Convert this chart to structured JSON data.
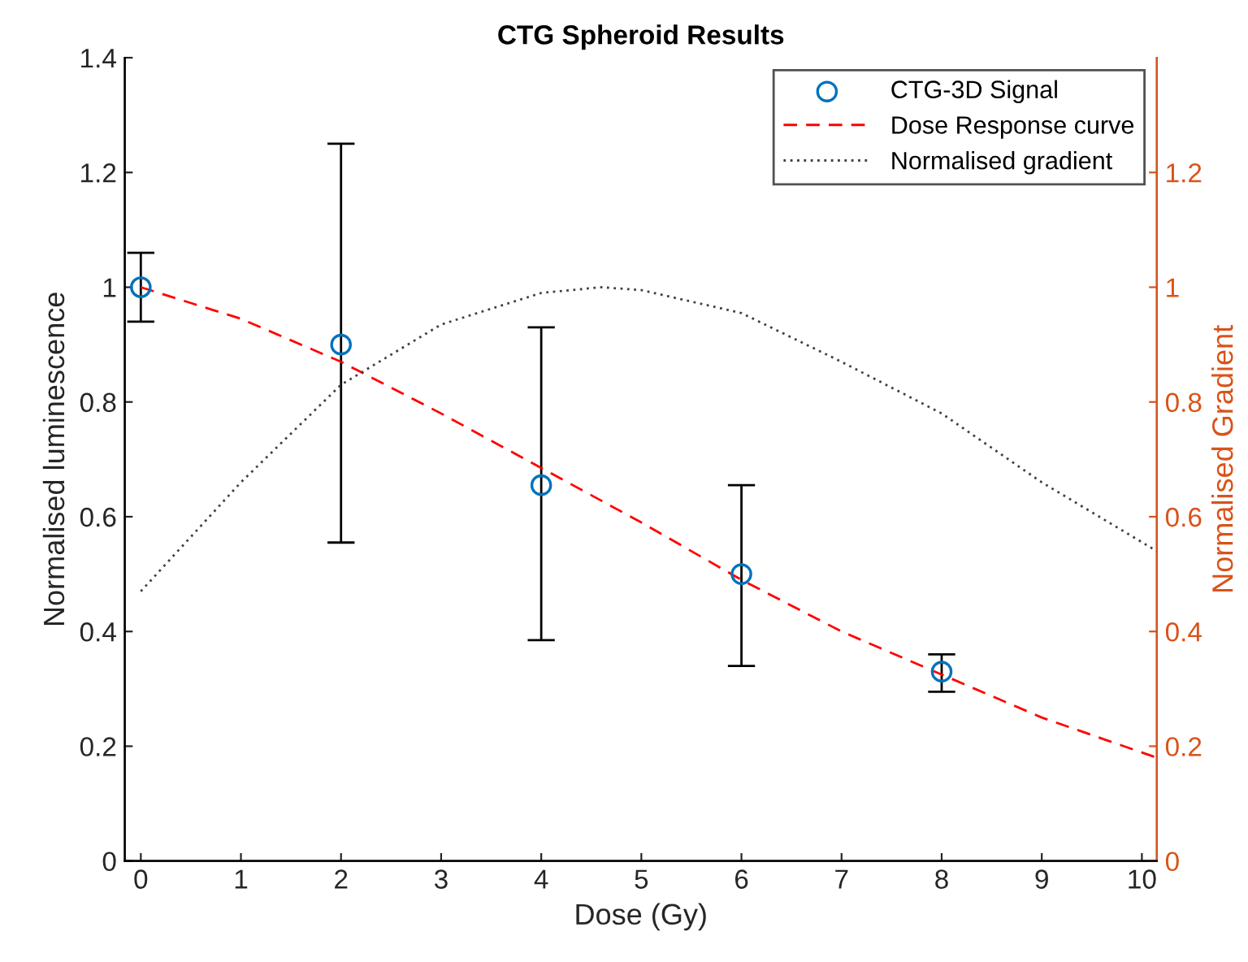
{
  "chart_data": {
    "type": "scatter",
    "title": "CTG Spheroid Results",
    "xlabel": "Dose (Gy)",
    "ylabel": "Normalised luminescence",
    "y2label": "Normalised Gradient",
    "xlim": [
      -0.16,
      10.15
    ],
    "xticks": [
      0,
      1,
      2,
      3,
      4,
      5,
      6,
      7,
      8,
      9,
      10
    ],
    "ylim": [
      0,
      1.4
    ],
    "yticks": [
      0,
      0.2,
      0.4,
      0.6,
      0.8,
      1,
      1.2,
      1.4
    ],
    "y2lim": [
      0,
      1.4
    ],
    "y2ticks": [
      0,
      0.2,
      0.4,
      0.6,
      0.8,
      1,
      1.2
    ],
    "legend": "top right",
    "grid": false,
    "series": [
      {
        "name": "CTG-3D Signal",
        "marker": "circle",
        "color": "#0072bd",
        "x": [
          0,
          2,
          4,
          6,
          8
        ],
        "values": [
          1.0,
          0.9,
          0.655,
          0.5,
          0.33
        ],
        "errors": [
          [
            0.94,
            1.06
          ],
          [
            0.555,
            1.25
          ],
          [
            0.385,
            0.93
          ],
          [
            0.34,
            0.655
          ],
          [
            0.295,
            0.36
          ]
        ]
      },
      {
        "name": "Dose Response curve",
        "type": "line",
        "line_style": "dashed",
        "color": "#ff0000",
        "x": [
          0,
          1,
          2,
          3,
          4,
          5,
          6,
          7,
          8,
          9,
          10.15
        ],
        "values": [
          1.0,
          0.945,
          0.87,
          0.78,
          0.685,
          0.59,
          0.49,
          0.4,
          0.325,
          0.25,
          0.18
        ]
      },
      {
        "name": "Normalised gradient",
        "type": "line",
        "line_style": "dotted",
        "axis": "y2",
        "color": "#404040",
        "x": [
          0,
          1,
          2,
          3,
          4,
          4.6,
          5,
          6,
          7,
          8,
          9,
          10.15
        ],
        "values": [
          0.47,
          0.66,
          0.83,
          0.935,
          0.99,
          1.0,
          0.995,
          0.955,
          0.87,
          0.78,
          0.66,
          0.54
        ]
      }
    ]
  }
}
